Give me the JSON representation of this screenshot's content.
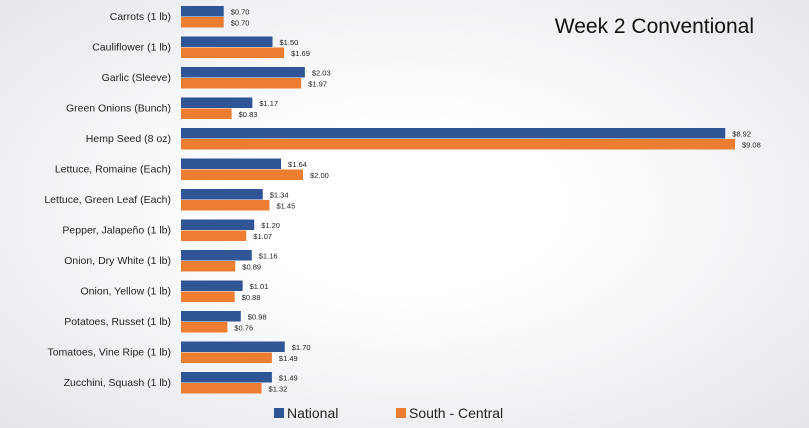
{
  "chart_data": {
    "type": "bar",
    "orientation": "horizontal",
    "title": "Week 2 Conventional",
    "xlabel": "",
    "ylabel": "",
    "xlim": [
      0,
      9.08
    ],
    "grid": false,
    "legend_position": "bottom",
    "categories": [
      "Carrots (1 lb)",
      "Cauliflower (1 lb)",
      "Garlic (Sleeve)",
      "Green Onions (Bunch)",
      "Hemp Seed (8 oz)",
      "Lettuce, Romaine (Each)",
      "Lettuce, Green Leaf (Each)",
      "Pepper, Jalapeño (1 lb)",
      "Onion, Dry White (1 lb)",
      "Onion, Yellow (1 lb)",
      "Potatoes, Russet (1 lb)",
      "Tomatoes, Vine Ripe (1 lb)",
      "Zucchini, Squash (1 lb)"
    ],
    "series": [
      {
        "name": "National",
        "color": "#2f5597",
        "values": [
          0.7,
          1.5,
          2.03,
          1.17,
          8.92,
          1.64,
          1.34,
          1.2,
          1.16,
          1.01,
          0.98,
          1.7,
          1.49
        ],
        "labels": [
          "$0.70",
          "$1.50",
          "$2.03",
          "$1.17",
          "$8.92",
          "$1.64",
          "$1.34",
          "$1.20",
          "$1.16",
          "$1.01",
          "$0.98",
          "$1.70",
          "$1.49"
        ]
      },
      {
        "name": "South - Central",
        "color": "#ed7d31",
        "values": [
          0.7,
          1.69,
          1.97,
          0.83,
          9.08,
          2.0,
          1.45,
          1.07,
          0.89,
          0.88,
          0.76,
          1.49,
          1.32
        ],
        "labels": [
          "$0.70",
          "$1.69",
          "$1.97",
          "$0.83",
          "$9.08",
          "$2.00",
          "$1.45",
          "$1.07",
          "$0.89",
          "$0.88",
          "$0.76",
          "$1.49",
          "$1.32"
        ]
      }
    ]
  }
}
